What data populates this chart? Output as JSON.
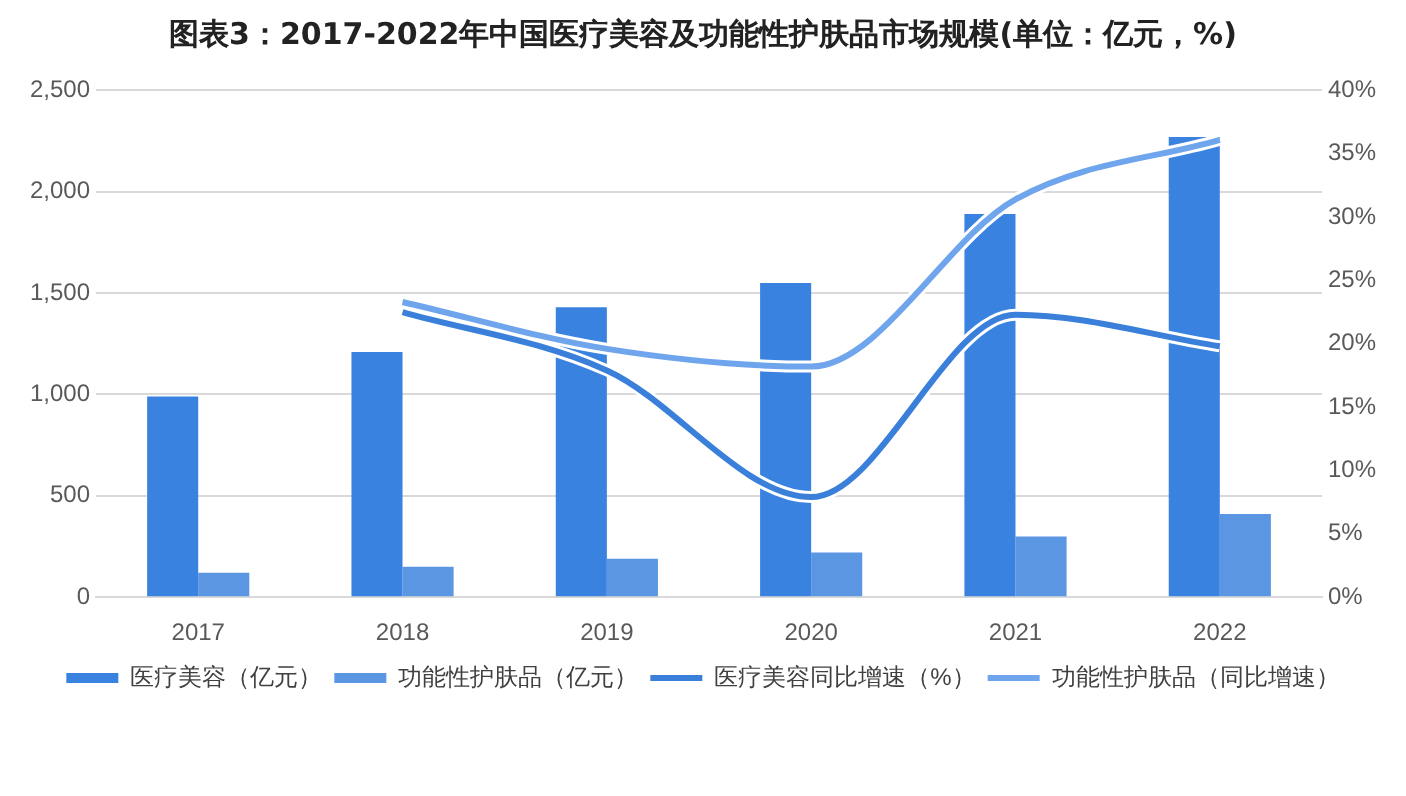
{
  "chart_data": {
    "type": "bar",
    "title": "图表3：2017-2022年中国医疗美容及功能性护肤品市场规模(单位：亿元，%)",
    "categories": [
      "2017",
      "2018",
      "2019",
      "2020",
      "2021",
      "2022"
    ],
    "series": [
      {
        "name": "医疗美容（亿元）",
        "color": "#3a82e0",
        "values": [
          990,
          1210,
          1430,
          1550,
          1890,
          2270
        ]
      },
      {
        "name": "功能性护肤品（亿元）",
        "color": "#5b96e3",
        "values": [
          120,
          150,
          190,
          220,
          300,
          410
        ]
      },
      {
        "name": "医疗美容同比增速（%）",
        "type": "line",
        "axis": "y2",
        "color": "#3a7fd9",
        "values": [
          null,
          22.5,
          17.9,
          7.9,
          22.3,
          19.8
        ]
      },
      {
        "name": "功能性护肤品（同比增速）",
        "type": "line",
        "axis": "y2",
        "color": "#6fa5ec",
        "values": [
          null,
          23.3,
          19.6,
          18.2,
          31.4,
          36.1
        ]
      }
    ],
    "ylim": [
      0,
      2500
    ],
    "yticks": [
      0,
      500,
      {
        "value": 1000,
        "label": "1,000"
      },
      {
        "value": 1500,
        "label": "1,500"
      },
      {
        "value": 2000,
        "label": "2,000"
      },
      {
        "value": 2500,
        "label": "2,500"
      }
    ],
    "y2lim": [
      0,
      40
    ],
    "y2ticks": [
      {
        "value": 0,
        "label": "0%"
      },
      {
        "value": 5,
        "label": "5%"
      },
      {
        "value": 10,
        "label": "10%"
      },
      {
        "value": 15,
        "label": "15%"
      },
      {
        "value": 20,
        "label": "20%"
      },
      {
        "value": 25,
        "label": "25%"
      },
      {
        "value": 30,
        "label": "30%"
      },
      {
        "value": 35,
        "label": "35%"
      },
      {
        "value": 40,
        "label": "40%"
      }
    ],
    "grid": "y",
    "legend": "bottom",
    "marker": "none"
  }
}
